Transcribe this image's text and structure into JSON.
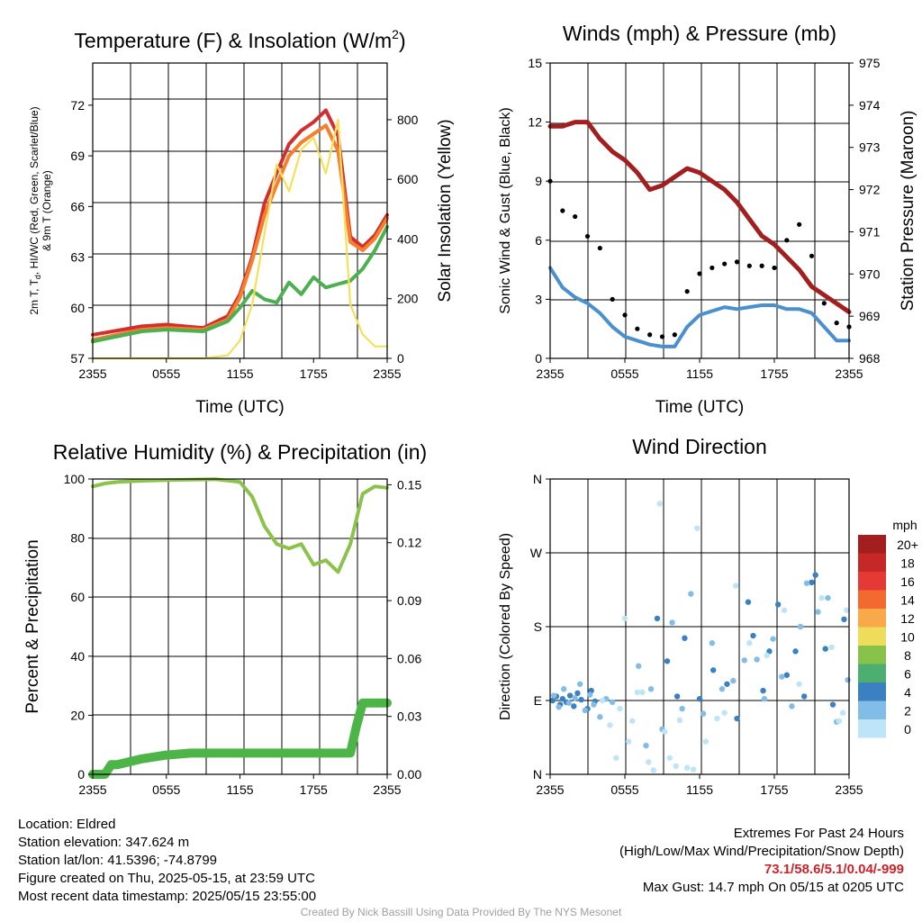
{
  "chart_data": [
    {
      "id": "temp",
      "type": "line",
      "title": "Temperature (F) & Insolation (W/m²)",
      "xlabel": "Time (UTC)",
      "ylabel_left": "2m T, Tₑ, HI/WC (Red, Green, Scarlet/Blue) & 9m T (Orange)",
      "ylabel_left_line1": "2m T, T",
      "ylabel_left_sub": "d",
      "ylabel_left_line1b": ", HI/WC (Red, Green, Scarlet/Blue)",
      "ylabel_left_line2": "& 9m T (Orange)",
      "ylabel_right": "Solar Insolation (Yellow)",
      "x_ticks": [
        "2355",
        "0555",
        "1155",
        "1755",
        "2355"
      ],
      "y_ticks_left": [
        "57",
        "60",
        "63",
        "66",
        "69",
        "72"
      ],
      "y_ticks_right": [
        "0",
        "200",
        "400",
        "600",
        "800"
      ],
      "ylim_left": [
        57,
        74.5
      ],
      "ylim_right": [
        0,
        990
      ],
      "x_hours": [
        0,
        4,
        6,
        9,
        11,
        12,
        13,
        14,
        15,
        16,
        17,
        18,
        19,
        20,
        21,
        22,
        23,
        24
      ],
      "series": [
        {
          "color": "#d32f2f",
          "values": [
            58.4,
            58.9,
            59.0,
            58.8,
            59.5,
            60.8,
            63.0,
            66.2,
            68.0,
            69.7,
            70.5,
            71.0,
            71.7,
            70.2,
            64.2,
            63.6,
            64.3,
            65.5
          ]
        },
        {
          "color": "#f57f2a",
          "values": [
            58.1,
            58.7,
            58.8,
            58.7,
            59.3,
            60.6,
            62.8,
            65.5,
            67.3,
            69.0,
            69.8,
            70.3,
            70.8,
            69.3,
            63.9,
            63.4,
            64.1,
            65.3
          ]
        },
        {
          "color": "#4caf50",
          "values": [
            58.0,
            58.6,
            58.7,
            58.6,
            59.2,
            60.0,
            61.0,
            60.5,
            60.3,
            61.5,
            60.8,
            61.8,
            61.2,
            61.4,
            61.6,
            62.3,
            63.4,
            64.8
          ]
        },
        {
          "color": "#f6e05a",
          "axis": "right",
          "values": [
            0,
            0,
            0,
            0,
            10,
            60,
            180,
            420,
            650,
            560,
            700,
            740,
            620,
            800,
            180,
            80,
            40,
            40
          ]
        }
      ]
    },
    {
      "id": "wind",
      "type": "line",
      "title": "Winds (mph) & Pressure (mb)",
      "xlabel": "Time (UTC)",
      "ylabel_left": "Sonic Wind & Gust (Blue, Black)",
      "ylabel_right": "Station Pressure (Maroon)",
      "x_ticks": [
        "2355",
        "0555",
        "1155",
        "1755",
        "2355"
      ],
      "y_ticks_left": [
        "0",
        "3",
        "6",
        "9",
        "12",
        "15"
      ],
      "y_ticks_right": [
        "968",
        "969",
        "970",
        "971",
        "972",
        "973",
        "974",
        "975"
      ],
      "ylim_left": [
        0,
        15
      ],
      "ylim_right": [
        968,
        975
      ],
      "x_hours": [
        0,
        1,
        2,
        3,
        4,
        5,
        6,
        7,
        8,
        9,
        10,
        11,
        12,
        13,
        14,
        15,
        16,
        17,
        18,
        19,
        20,
        21,
        22,
        23,
        24
      ],
      "series": [
        {
          "color": "#4a90cf",
          "values": [
            4.6,
            3.6,
            3.1,
            2.8,
            2.3,
            1.6,
            1.1,
            0.9,
            0.7,
            0.6,
            0.6,
            1.6,
            2.2,
            2.4,
            2.6,
            2.5,
            2.6,
            2.7,
            2.7,
            2.5,
            2.5,
            2.3,
            1.6,
            0.9,
            0.9
          ]
        },
        {
          "color": "#000000",
          "style": "dots",
          "values": [
            9.0,
            7.5,
            7.2,
            6.2,
            5.6,
            3.0,
            2.2,
            1.5,
            1.2,
            1.1,
            1.2,
            3.4,
            4.3,
            4.6,
            4.8,
            4.9,
            4.7,
            4.7,
            4.6,
            6.0,
            6.8,
            5.2,
            2.8,
            1.8,
            1.6
          ]
        },
        {
          "color": "#a31f1f",
          "axis": "right",
          "values": [
            973.5,
            973.5,
            973.6,
            973.6,
            973.2,
            972.9,
            972.7,
            972.4,
            972.0,
            972.1,
            972.3,
            972.5,
            972.4,
            972.2,
            972.0,
            971.7,
            971.3,
            970.9,
            970.7,
            970.4,
            970.1,
            969.7,
            969.5,
            969.3,
            969.1
          ]
        }
      ]
    },
    {
      "id": "rh",
      "type": "line",
      "title": "Relative Humidity (%) & Precipitation (in)",
      "ylabel_left": "Percent & Precipitation",
      "x_ticks": [
        "2355",
        "0555",
        "1155",
        "1755",
        "2355"
      ],
      "y_ticks_left": [
        "0",
        "20",
        "40",
        "60",
        "80",
        "100"
      ],
      "y_ticks_right": [
        "0.00",
        "0.03",
        "0.06",
        "0.09",
        "0.12",
        "0.15"
      ],
      "ylim_left": [
        0,
        100
      ],
      "ylim_right": [
        0,
        0.153
      ],
      "x_hours": [
        0,
        1,
        2,
        4,
        6,
        8,
        10,
        12,
        13,
        14,
        15,
        16,
        17,
        18,
        19,
        20,
        21,
        22,
        23,
        24
      ],
      "series": [
        {
          "name": "RH",
          "color": "#8bc34a",
          "values": [
            97.5,
            98.5,
            99.0,
            99.4,
            99.6,
            99.8,
            99.9,
            99.0,
            94.0,
            84.0,
            78.0,
            76.5,
            78.0,
            71.0,
            72.5,
            68.5,
            78.0,
            95.0,
            97.5,
            97.0
          ]
        },
        {
          "name": "Precip",
          "color": "#4db447",
          "axis": "right",
          "x": [
            0,
            1,
            1.5,
            2,
            4,
            6,
            8,
            10,
            12,
            14,
            16,
            18,
            20,
            21,
            21.5,
            22,
            24
          ],
          "values": [
            0,
            0,
            0.005,
            0.005,
            0.008,
            0.01,
            0.011,
            0.011,
            0.011,
            0.011,
            0.011,
            0.011,
            0.011,
            0.011,
            0.025,
            0.037,
            0.037
          ]
        }
      ]
    },
    {
      "id": "winddir",
      "type": "scatter",
      "title": "Wind Direction",
      "ylabel_left": "Direction (Colored By Speed)",
      "x_ticks": [
        "2355",
        "0555",
        "1155",
        "1755",
        "2355"
      ],
      "y_ticks_left": [
        "N",
        "E",
        "S",
        "W",
        "N"
      ],
      "ylim": [
        0,
        360
      ],
      "legend_title": "mph",
      "legend_labels": [
        "20+",
        "18",
        "16",
        "14",
        "12",
        "10",
        "8",
        "6",
        "4",
        "2",
        "0"
      ],
      "legend_colors": [
        "#a31f1f",
        "#c62828",
        "#e53935",
        "#f26a2e",
        "#f9a84a",
        "#eedc5b",
        "#88c24a",
        "#4caf6f",
        "#3b80c0",
        "#82bde8",
        "#bde4f7"
      ],
      "groups": [
        {
          "color": "#3b80c0",
          "x": [
            0.2,
            0.5,
            0.8,
            1.0,
            1.3,
            1.6,
            1.9,
            2.2,
            2.5,
            3.0,
            3.3,
            3.6,
            8.6,
            9.4,
            10.2,
            10.8,
            12.0,
            13.1,
            14.2,
            15.0,
            15.9,
            16.3,
            17.1,
            17.6,
            18.3,
            19.0,
            19.7,
            20.4,
            21.0,
            21.3,
            22.1,
            22.7,
            23.6
          ],
          "y": [
            90,
            95,
            85,
            92,
            88,
            96,
            83,
            99,
            91,
            80,
            102,
            89,
            190,
            138,
            95,
            166,
            92,
            127,
            110,
            68,
            210,
            169,
            102,
            150,
            207,
            121,
            150,
            95,
            234,
            243,
            153,
            85,
            189
          ]
        },
        {
          "color": "#82bde8",
          "x": [
            0.3,
            0.7,
            1.1,
            1.5,
            2.0,
            2.4,
            2.8,
            3.2,
            3.5,
            4.0,
            4.5,
            5.0,
            7.1,
            7.7,
            8.1,
            9.0,
            9.8,
            10.6,
            11.3,
            12.3,
            13.0,
            13.8,
            14.7,
            15.6,
            16.6,
            17.2,
            17.9,
            18.6,
            19.4,
            20.1,
            20.6,
            21.5,
            22.3,
            23.0,
            23.9
          ],
          "y": [
            96,
            82,
            104,
            87,
            93,
            110,
            78,
            97,
            85,
            70,
            92,
            88,
            132,
            35,
            104,
            55,
            185,
            80,
            220,
            74,
            160,
            104,
            114,
            139,
            140,
            92,
            165,
            119,
            83,
            180,
            233,
            198,
            215,
            64,
            115
          ]
        },
        {
          "color": "#bde4f7",
          "x": [
            4.2,
            4.8,
            5.3,
            5.6,
            6.0,
            6.3,
            6.6,
            7.0,
            7.4,
            7.9,
            8.3,
            8.8,
            9.2,
            9.6,
            10.1,
            10.4,
            11.0,
            11.5,
            11.8,
            12.5,
            13.4,
            14.0,
            14.9,
            16.0,
            17.4,
            18.8,
            20.0,
            21.8,
            22.6,
            23.2,
            23.5,
            23.8
          ],
          "y": [
            90,
            60,
            20,
            80,
            190,
            40,
            65,
            100,
            100,
            15,
            5,
            330,
            52,
            20,
            10,
            66,
            8,
            6,
            300,
            40,
            68,
            75,
            230,
            160,
            145,
            200,
            110,
            215,
            155,
            65,
            75,
            200
          ]
        }
      ]
    }
  ],
  "info": {
    "location": "Location: Eldred",
    "elevation": "Station elevation: 347.624 m",
    "latlon": "Station lat/lon: 41.5396; -74.8799",
    "created": "Figure created on Thu, 2025-05-15, at 23:59 UTC",
    "recent": "Most recent data timestamp: 2025/05/15 23:55:00"
  },
  "extremes": {
    "heading": "Extremes For Past 24 Hours",
    "subheading": "(High/Low/Max Wind/Precipitation/Snow Depth)",
    "values": "73.1/58.6/5.1/0.04/-999",
    "max_gust": "Max Gust: 14.7 mph On 05/15 at 0205 UTC"
  },
  "credit": "Created By Nick Bassill Using Data Provided By The NYS Mesonet"
}
